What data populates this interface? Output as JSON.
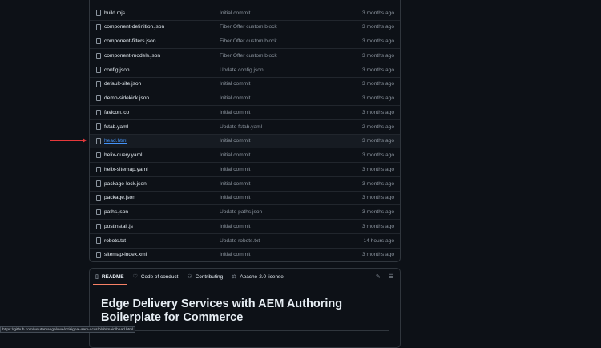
{
  "files": [
    {
      "name": "",
      "message": "",
      "age": ""
    },
    {
      "name": "build.mjs",
      "message": "Initial commit",
      "age": "3 months ago"
    },
    {
      "name": "component-definition.json",
      "message": "Fiber Offer custom block",
      "age": "3 months ago"
    },
    {
      "name": "component-filters.json",
      "message": "Fiber Offer custom block",
      "age": "3 months ago"
    },
    {
      "name": "component-models.json",
      "message": "Fiber Offer custom block",
      "age": "3 months ago"
    },
    {
      "name": "config.json",
      "message": "Update config.json",
      "age": "3 months ago"
    },
    {
      "name": "default-site.json",
      "message": "Initial commit",
      "age": "3 months ago"
    },
    {
      "name": "demo-sidekick.json",
      "message": "Initial commit",
      "age": "3 months ago"
    },
    {
      "name": "favicon.ico",
      "message": "Initial commit",
      "age": "3 months ago"
    },
    {
      "name": "fstab.yaml",
      "message": "Update fstab.yaml",
      "age": "2 months ago"
    },
    {
      "name": "head.html",
      "message": "Initial commit",
      "age": "3 months ago",
      "highlighted": true
    },
    {
      "name": "helix-query.yaml",
      "message": "Initial commit",
      "age": "3 months ago"
    },
    {
      "name": "helix-sitemap.yaml",
      "message": "Initial commit",
      "age": "3 months ago"
    },
    {
      "name": "package-lock.json",
      "message": "Initial commit",
      "age": "3 months ago"
    },
    {
      "name": "package.json",
      "message": "Initial commit",
      "age": "3 months ago"
    },
    {
      "name": "paths.json",
      "message": "Update paths.json",
      "age": "3 months ago"
    },
    {
      "name": "postinstall.js",
      "message": "Initial commit",
      "age": "3 months ago"
    },
    {
      "name": "robots.txt",
      "message": "Update robots.txt",
      "age": "14 hours ago"
    },
    {
      "name": "sitemap-index.xml",
      "message": "Initial commit",
      "age": "3 months ago"
    }
  ],
  "readme": {
    "tabs": [
      {
        "label": "README",
        "icon": "book-icon",
        "active": true
      },
      {
        "label": "Code of conduct",
        "icon": "heart-shield-icon"
      },
      {
        "label": "Contributing",
        "icon": "people-icon"
      },
      {
        "label": "Apache-2.0 license",
        "icon": "scale-icon"
      }
    ],
    "title": "Edge Delivery Services with AEM Authoring Boilerplate for Commerce"
  },
  "status_url": "https://github.com/woutervangeluwe/citisignal-aem-accs/blob/main/head.html",
  "colors": {
    "accent": "#f78166",
    "link": "#4493f8",
    "arrow": "#e5383b"
  }
}
